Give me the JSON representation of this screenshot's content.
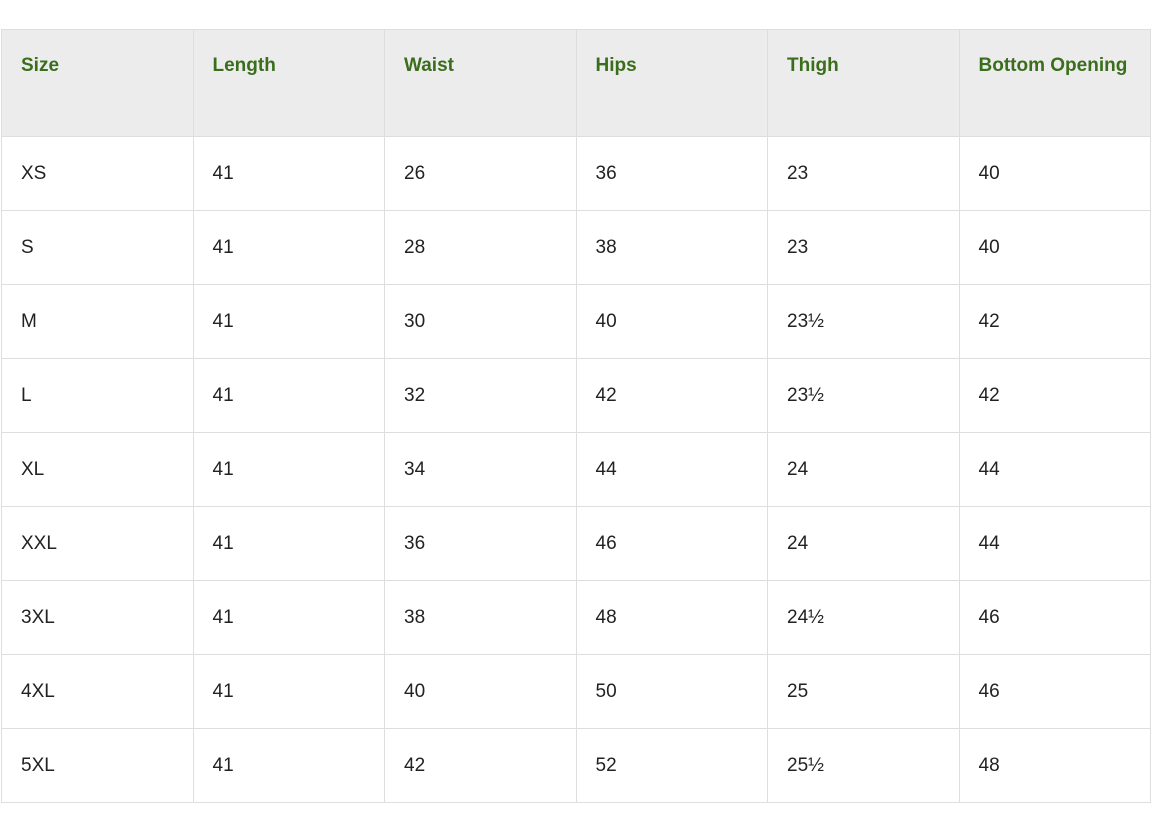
{
  "size_chart": {
    "headers": [
      "Size",
      "Length",
      "Waist",
      "Hips",
      "Thigh",
      "Bottom Opening"
    ],
    "rows": [
      [
        "XS",
        "41",
        "26",
        "36",
        "23",
        "40"
      ],
      [
        "S",
        "41",
        "28",
        "38",
        "23",
        "40"
      ],
      [
        "M",
        "41",
        "30",
        "40",
        "23½",
        "42"
      ],
      [
        "L",
        "41",
        "32",
        "42",
        "23½",
        "42"
      ],
      [
        "XL",
        "41",
        "34",
        "44",
        "24",
        "44"
      ],
      [
        "XXL",
        "41",
        "36",
        "46",
        "24",
        "44"
      ],
      [
        "3XL",
        "41",
        "38",
        "48",
        "24½",
        "46"
      ],
      [
        "4XL",
        "41",
        "40",
        "50",
        "25",
        "46"
      ],
      [
        "5XL",
        "41",
        "42",
        "52",
        "25½",
        "48"
      ]
    ]
  },
  "colors": {
    "header_text": "#3b6e1c",
    "header_bg": "#ececec",
    "border": "#dedede"
  }
}
